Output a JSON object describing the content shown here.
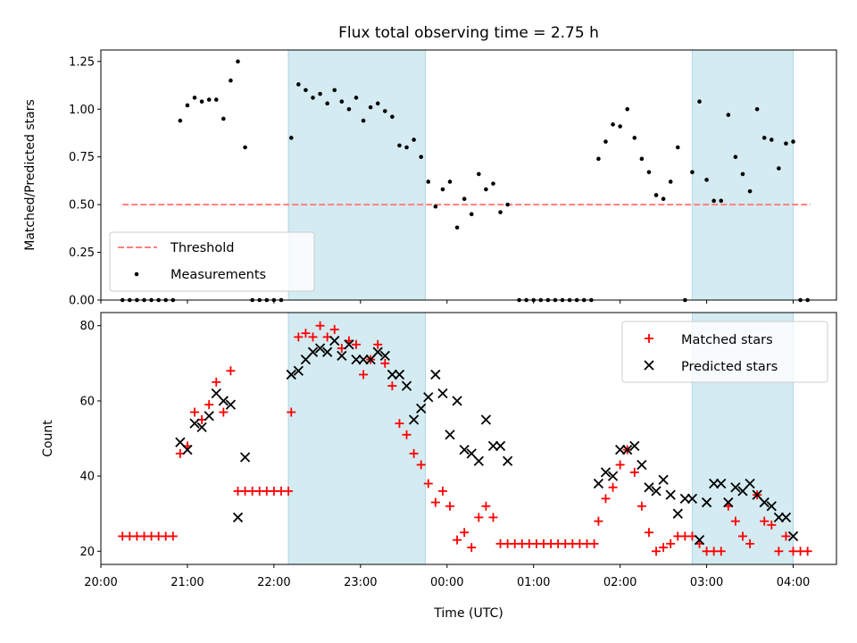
{
  "chart_data": [
    {
      "type": "scatter",
      "title": "Flux total observing time = 2.75 h",
      "xlabel": "",
      "ylabel": "Matched/Predicted stars",
      "ylim": [
        0,
        1.31
      ],
      "xlim": [
        "20:00",
        "04:30"
      ],
      "yticks": [
        "0.00",
        "0.25",
        "0.50",
        "0.75",
        "1.00",
        "1.25"
      ],
      "shaded_intervals": [
        [
          "22:10",
          "23:45"
        ],
        [
          "02:50",
          "04:00"
        ]
      ],
      "legend_position": "lower-left",
      "legend": [
        {
          "label": "Threshold",
          "style": "dashed-line",
          "color": "#ff7f7f"
        },
        {
          "label": "Measurements",
          "style": "dot",
          "color": "#000000"
        }
      ],
      "threshold": {
        "value": 0.5,
        "x_start": "20:15",
        "x_end": "04:12"
      },
      "measurements": [
        [
          "20:15",
          0
        ],
        [
          "20:20",
          0
        ],
        [
          "20:25",
          0
        ],
        [
          "20:30",
          0
        ],
        [
          "20:35",
          0
        ],
        [
          "20:40",
          0
        ],
        [
          "20:45",
          0
        ],
        [
          "20:50",
          0
        ],
        [
          "20:55",
          0.94
        ],
        [
          "21:00",
          1.02
        ],
        [
          "21:05",
          1.06
        ],
        [
          "21:10",
          1.04
        ],
        [
          "21:15",
          1.05
        ],
        [
          "21:20",
          1.05
        ],
        [
          "21:25",
          0.95
        ],
        [
          "21:30",
          1.15
        ],
        [
          "21:35",
          1.25
        ],
        [
          "21:40",
          0.8
        ],
        [
          "21:45",
          0
        ],
        [
          "21:50",
          0
        ],
        [
          "21:55",
          0
        ],
        [
          "22:00",
          0
        ],
        [
          "22:05",
          0
        ],
        [
          "22:12",
          0.85
        ],
        [
          "22:17",
          1.13
        ],
        [
          "22:22",
          1.1
        ],
        [
          "22:27",
          1.06
        ],
        [
          "22:32",
          1.08
        ],
        [
          "22:37",
          1.03
        ],
        [
          "22:42",
          1.1
        ],
        [
          "22:47",
          1.04
        ],
        [
          "22:52",
          1.0
        ],
        [
          "22:57",
          1.06
        ],
        [
          "23:02",
          0.94
        ],
        [
          "23:07",
          1.01
        ],
        [
          "23:12",
          1.03
        ],
        [
          "23:17",
          0.99
        ],
        [
          "23:22",
          0.96
        ],
        [
          "23:27",
          0.81
        ],
        [
          "23:32",
          0.8
        ],
        [
          "23:37",
          0.84
        ],
        [
          "23:42",
          0.75
        ],
        [
          "23:47",
          0.62
        ],
        [
          "23:52",
          0.49
        ],
        [
          "23:57",
          0.58
        ],
        [
          "00:02",
          0.62
        ],
        [
          "00:07",
          0.38
        ],
        [
          "00:12",
          0.53
        ],
        [
          "00:17",
          0.45
        ],
        [
          "00:22",
          0.66
        ],
        [
          "00:27",
          0.58
        ],
        [
          "00:32",
          0.61
        ],
        [
          "00:37",
          0.46
        ],
        [
          "00:42",
          0.5
        ],
        [
          "00:50",
          0
        ],
        [
          "00:55",
          0
        ],
        [
          "01:00",
          0
        ],
        [
          "01:05",
          0
        ],
        [
          "01:10",
          0
        ],
        [
          "01:15",
          0
        ],
        [
          "01:20",
          0
        ],
        [
          "01:25",
          0
        ],
        [
          "01:30",
          0
        ],
        [
          "01:35",
          0
        ],
        [
          "01:40",
          0
        ],
        [
          "01:45",
          0.74
        ],
        [
          "01:50",
          0.83
        ],
        [
          "01:55",
          0.92
        ],
        [
          "02:00",
          0.91
        ],
        [
          "02:05",
          1.0
        ],
        [
          "02:10",
          0.85
        ],
        [
          "02:15",
          0.74
        ],
        [
          "02:20",
          0.67
        ],
        [
          "02:25",
          0.55
        ],
        [
          "02:30",
          0.53
        ],
        [
          "02:35",
          0.62
        ],
        [
          "02:40",
          0.8
        ],
        [
          "02:45",
          0
        ],
        [
          "02:50",
          0.67
        ],
        [
          "02:55",
          1.04
        ],
        [
          "03:00",
          0.63
        ],
        [
          "03:05",
          0.52
        ],
        [
          "03:10",
          0.52
        ],
        [
          "03:15",
          0.97
        ],
        [
          "03:20",
          0.75
        ],
        [
          "03:25",
          0.66
        ],
        [
          "03:30",
          0.57
        ],
        [
          "03:35",
          1.0
        ],
        [
          "03:40",
          0.85
        ],
        [
          "03:45",
          0.84
        ],
        [
          "03:50",
          0.69
        ],
        [
          "03:55",
          0.82
        ],
        [
          "04:00",
          0.83
        ],
        [
          "04:05",
          0
        ],
        [
          "04:10",
          0
        ]
      ]
    },
    {
      "type": "scatter",
      "title": "",
      "xlabel": "Time (UTC)",
      "ylabel": "Count",
      "ylim": [
        16.5,
        83.5
      ],
      "xlim": [
        "20:00",
        "04:30"
      ],
      "xticks": [
        "20:00",
        "21:00",
        "22:00",
        "23:00",
        "00:00",
        "01:00",
        "02:00",
        "03:00",
        "04:00"
      ],
      "yticks": [
        "20",
        "40",
        "60",
        "80"
      ],
      "shaded_intervals": [
        [
          "22:10",
          "23:45"
        ],
        [
          "02:50",
          "04:00"
        ]
      ],
      "legend_position": "upper-right",
      "legend": [
        {
          "label": "Matched stars",
          "marker": "+",
          "color": "#ff0000"
        },
        {
          "label": "Predicted stars",
          "marker": "x",
          "color": "#000000"
        }
      ],
      "series": [
        {
          "name": "Matched stars",
          "points": [
            [
              "20:15",
              24
            ],
            [
              "20:20",
              24
            ],
            [
              "20:25",
              24
            ],
            [
              "20:30",
              24
            ],
            [
              "20:35",
              24
            ],
            [
              "20:40",
              24
            ],
            [
              "20:45",
              24
            ],
            [
              "20:50",
              24
            ],
            [
              "20:55",
              46
            ],
            [
              "21:00",
              48
            ],
            [
              "21:05",
              57
            ],
            [
              "21:10",
              55
            ],
            [
              "21:15",
              59
            ],
            [
              "21:20",
              65
            ],
            [
              "21:25",
              57
            ],
            [
              "21:30",
              68
            ],
            [
              "21:35",
              36
            ],
            [
              "21:40",
              36
            ],
            [
              "21:45",
              36
            ],
            [
              "21:50",
              36
            ],
            [
              "21:55",
              36
            ],
            [
              "22:00",
              36
            ],
            [
              "22:05",
              36
            ],
            [
              "22:10",
              36
            ],
            [
              "22:12",
              57
            ],
            [
              "22:17",
              77
            ],
            [
              "22:22",
              78
            ],
            [
              "22:27",
              77
            ],
            [
              "22:32",
              80
            ],
            [
              "22:37",
              77
            ],
            [
              "22:42",
              79
            ],
            [
              "22:47",
              74
            ],
            [
              "22:52",
              76
            ],
            [
              "22:57",
              75
            ],
            [
              "23:02",
              67
            ],
            [
              "23:07",
              71
            ],
            [
              "23:12",
              75
            ],
            [
              "23:17",
              70
            ],
            [
              "23:22",
              64
            ],
            [
              "23:27",
              54
            ],
            [
              "23:32",
              51
            ],
            [
              "23:37",
              46
            ],
            [
              "23:42",
              43
            ],
            [
              "23:47",
              38
            ],
            [
              "23:52",
              33
            ],
            [
              "23:57",
              36
            ],
            [
              "00:02",
              32
            ],
            [
              "00:07",
              23
            ],
            [
              "00:12",
              25
            ],
            [
              "00:17",
              21
            ],
            [
              "00:22",
              29
            ],
            [
              "00:27",
              32
            ],
            [
              "00:32",
              29
            ],
            [
              "00:37",
              22
            ],
            [
              "00:42",
              22
            ],
            [
              "00:47",
              22
            ],
            [
              "00:52",
              22
            ],
            [
              "00:57",
              22
            ],
            [
              "01:02",
              22
            ],
            [
              "01:07",
              22
            ],
            [
              "01:12",
              22
            ],
            [
              "01:17",
              22
            ],
            [
              "01:22",
              22
            ],
            [
              "01:27",
              22
            ],
            [
              "01:32",
              22
            ],
            [
              "01:37",
              22
            ],
            [
              "01:42",
              22
            ],
            [
              "01:45",
              28
            ],
            [
              "01:50",
              34
            ],
            [
              "01:55",
              37
            ],
            [
              "02:00",
              43
            ],
            [
              "02:05",
              47
            ],
            [
              "02:10",
              41
            ],
            [
              "02:15",
              32
            ],
            [
              "02:20",
              25
            ],
            [
              "02:25",
              20
            ],
            [
              "02:30",
              21
            ],
            [
              "02:35",
              22
            ],
            [
              "02:40",
              24
            ],
            [
              "02:45",
              24
            ],
            [
              "02:50",
              24
            ],
            [
              "02:55",
              22
            ],
            [
              "03:00",
              20
            ],
            [
              "03:05",
              20
            ],
            [
              "03:10",
              20
            ],
            [
              "03:15",
              32
            ],
            [
              "03:20",
              28
            ],
            [
              "03:25",
              24
            ],
            [
              "03:30",
              22
            ],
            [
              "03:35",
              35
            ],
            [
              "03:40",
              28
            ],
            [
              "03:45",
              27
            ],
            [
              "03:50",
              20
            ],
            [
              "03:55",
              24
            ],
            [
              "04:00",
              20
            ],
            [
              "04:05",
              20
            ],
            [
              "04:10",
              20
            ]
          ]
        },
        {
          "name": "Predicted stars",
          "points": [
            [
              "20:55",
              49
            ],
            [
              "21:00",
              47
            ],
            [
              "21:05",
              54
            ],
            [
              "21:10",
              53
            ],
            [
              "21:15",
              56
            ],
            [
              "21:20",
              62
            ],
            [
              "21:25",
              60
            ],
            [
              "21:30",
              59
            ],
            [
              "21:35",
              29
            ],
            [
              "21:40",
              45
            ],
            [
              "22:12",
              67
            ],
            [
              "22:17",
              68
            ],
            [
              "22:22",
              71
            ],
            [
              "22:27",
              73
            ],
            [
              "22:32",
              74
            ],
            [
              "22:37",
              73
            ],
            [
              "22:42",
              76
            ],
            [
              "22:47",
              72
            ],
            [
              "22:52",
              75
            ],
            [
              "22:57",
              71
            ],
            [
              "23:02",
              71
            ],
            [
              "23:07",
              71
            ],
            [
              "23:12",
              73
            ],
            [
              "23:17",
              72
            ],
            [
              "23:22",
              67
            ],
            [
              "23:27",
              67
            ],
            [
              "23:32",
              64
            ],
            [
              "23:37",
              55
            ],
            [
              "23:42",
              58
            ],
            [
              "23:47",
              61
            ],
            [
              "23:52",
              67
            ],
            [
              "23:57",
              62
            ],
            [
              "00:02",
              51
            ],
            [
              "00:07",
              60
            ],
            [
              "00:12",
              47
            ],
            [
              "00:17",
              46
            ],
            [
              "00:22",
              44
            ],
            [
              "00:27",
              55
            ],
            [
              "00:32",
              48
            ],
            [
              "00:37",
              48
            ],
            [
              "00:42",
              44
            ],
            [
              "01:45",
              38
            ],
            [
              "01:50",
              41
            ],
            [
              "01:55",
              40
            ],
            [
              "02:00",
              47
            ],
            [
              "02:05",
              47
            ],
            [
              "02:10",
              48
            ],
            [
              "02:15",
              43
            ],
            [
              "02:20",
              37
            ],
            [
              "02:25",
              36
            ],
            [
              "02:30",
              39
            ],
            [
              "02:35",
              35
            ],
            [
              "02:40",
              30
            ],
            [
              "02:45",
              34
            ],
            [
              "02:50",
              34
            ],
            [
              "02:55",
              23
            ],
            [
              "03:00",
              33
            ],
            [
              "03:05",
              38
            ],
            [
              "03:10",
              38
            ],
            [
              "03:15",
              33
            ],
            [
              "03:20",
              37
            ],
            [
              "03:25",
              36
            ],
            [
              "03:30",
              38
            ],
            [
              "03:35",
              35
            ],
            [
              "03:40",
              33
            ],
            [
              "03:45",
              32
            ],
            [
              "03:50",
              29
            ],
            [
              "03:55",
              29
            ],
            [
              "04:00",
              24
            ]
          ]
        }
      ]
    }
  ]
}
